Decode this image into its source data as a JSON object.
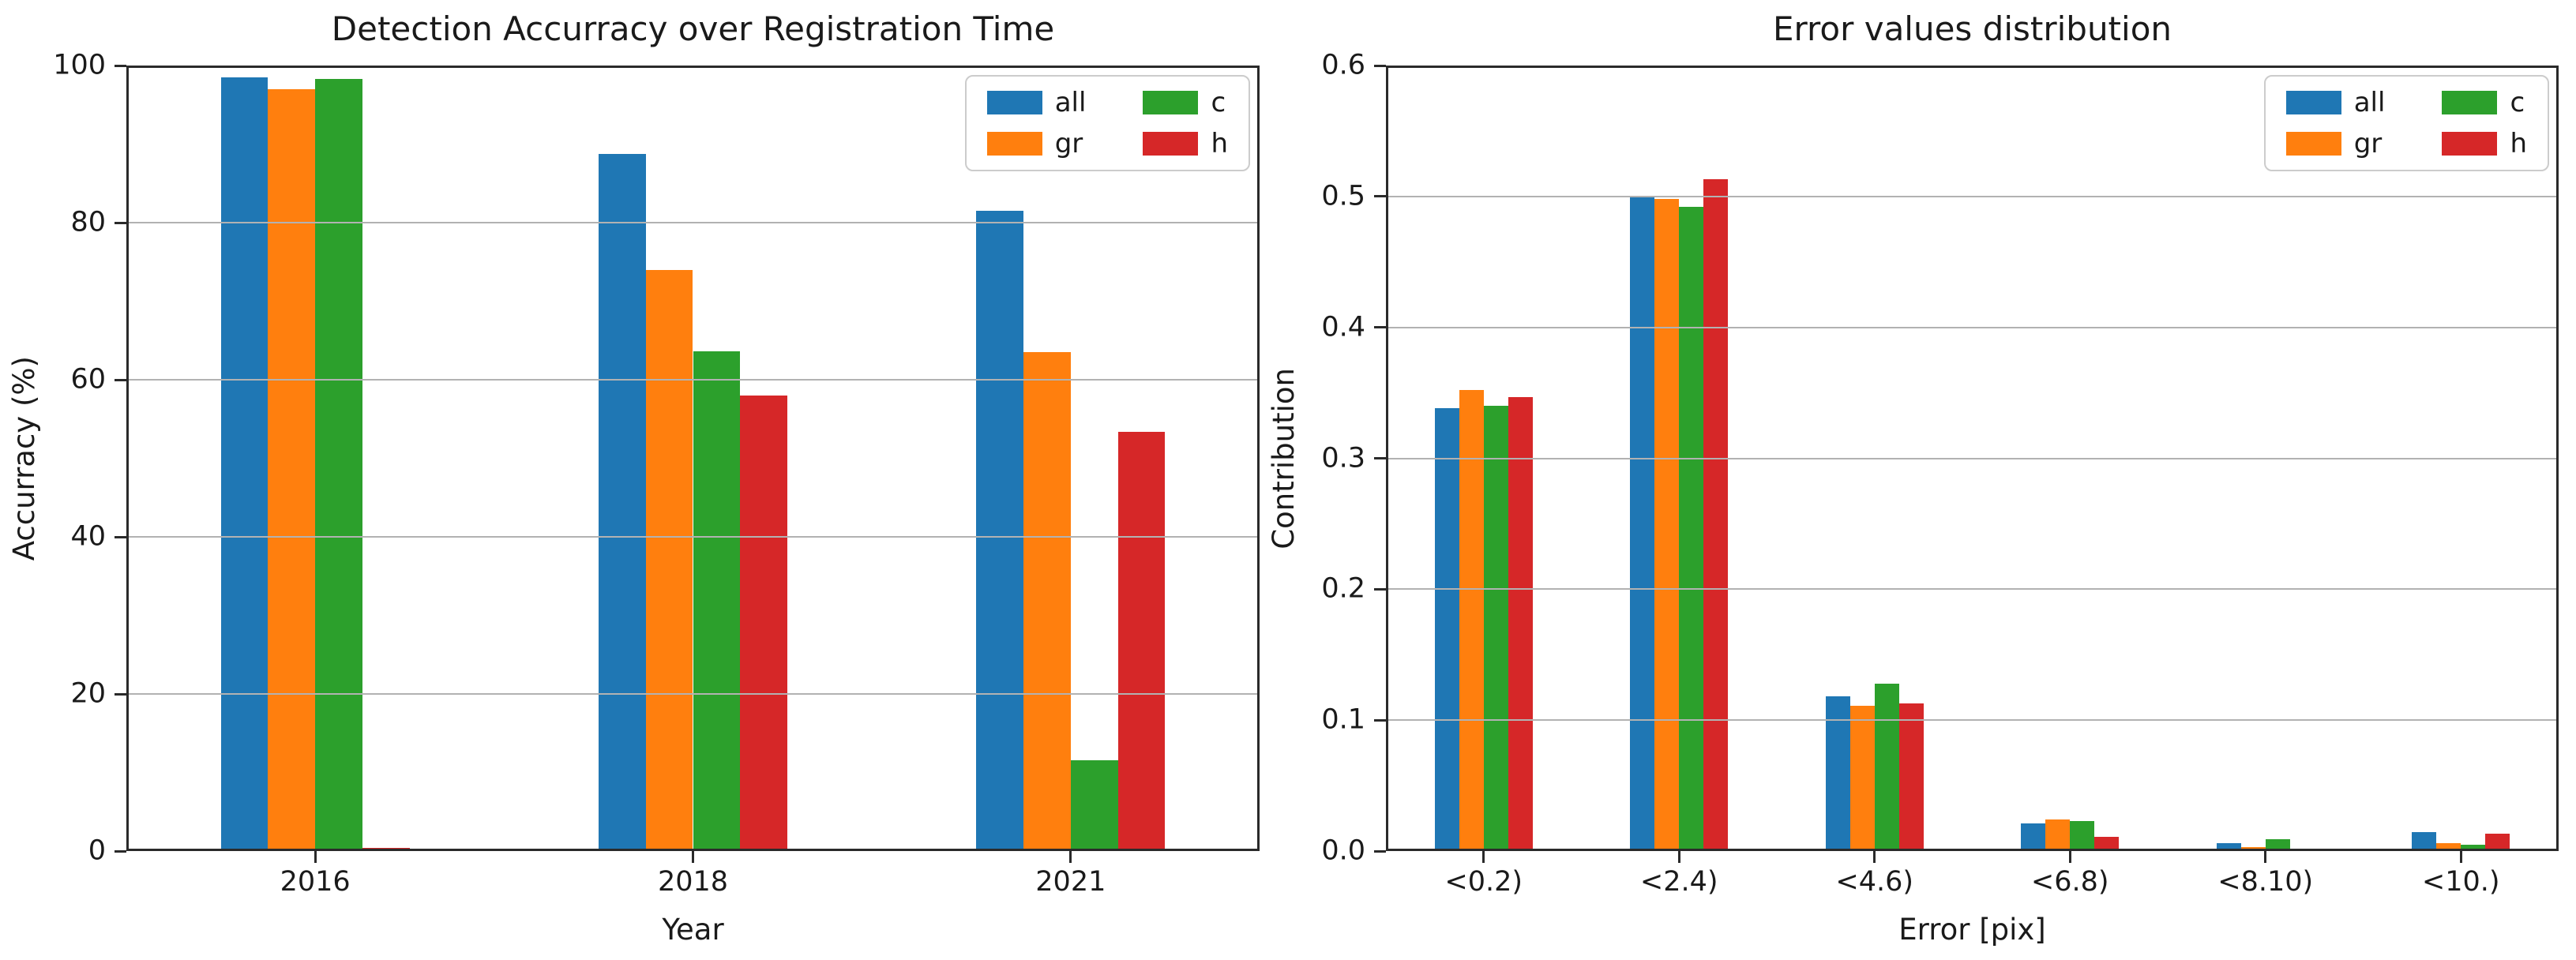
{
  "figure": {
    "background": "#ffffff"
  },
  "chart_data": [
    {
      "type": "bar",
      "title": "Detection Accurracy over Registration Time",
      "xlabel": "Year",
      "ylabel": "Accurracy (%)",
      "categories": [
        "2016",
        "2018",
        "2021"
      ],
      "ylim": [
        0,
        100
      ],
      "ytick_values": [
        0,
        20,
        40,
        60,
        80,
        100
      ],
      "ytick_labels": [
        "0",
        "20",
        "40",
        "60",
        "80",
        "100"
      ],
      "grid": "horizontal",
      "grid_above_bars": true,
      "legend_position": "upper right",
      "legend_columns": 2,
      "series": [
        {
          "name": "all",
          "color": "#1f77b4",
          "values": [
            98.5,
            88.7,
            81.5
          ]
        },
        {
          "name": "gr",
          "color": "#ff7f0e",
          "values": [
            97.0,
            74.0,
            63.5
          ]
        },
        {
          "name": "c",
          "color": "#2ca02c",
          "values": [
            98.3,
            63.6,
            11.6
          ]
        },
        {
          "name": "h",
          "color": "#d62728",
          "values": [
            0.4,
            58.0,
            53.4
          ]
        }
      ]
    },
    {
      "type": "bar",
      "title": "Error values distribution",
      "xlabel": "Error [pix]",
      "ylabel": "Contribution",
      "categories": [
        "<0.2)",
        "<2.4)",
        "<4.6)",
        "<6.8)",
        "<8.10)",
        "<10.)"
      ],
      "ylim": [
        0,
        0.6
      ],
      "ytick_values": [
        0,
        0.1,
        0.2,
        0.3,
        0.4,
        0.5,
        0.6
      ],
      "ytick_labels": [
        "0.0",
        "0.1",
        "0.2",
        "0.3",
        "0.4",
        "0.5",
        "0.6"
      ],
      "grid": "horizontal",
      "grid_above_bars": true,
      "legend_position": "upper right",
      "legend_columns": 2,
      "series": [
        {
          "name": "all",
          "color": "#1f77b4",
          "values": [
            0.338,
            0.5,
            0.118,
            0.021,
            0.006,
            0.0145
          ]
        },
        {
          "name": "gr",
          "color": "#ff7f0e",
          "values": [
            0.352,
            0.498,
            0.111,
            0.024,
            0.003,
            0.006
          ]
        },
        {
          "name": "c",
          "color": "#2ca02c",
          "values": [
            0.34,
            0.492,
            0.128,
            0.023,
            0.009,
            0.005
          ]
        },
        {
          "name": "h",
          "color": "#d62728",
          "values": [
            0.347,
            0.513,
            0.113,
            0.011,
            0.001,
            0.013
          ]
        }
      ]
    }
  ]
}
